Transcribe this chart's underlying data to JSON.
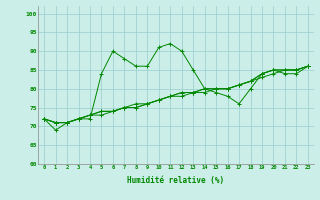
{
  "xlabel": "Humidité relative (%)",
  "background_color": "#cceee8",
  "grid_color": "#99cccc",
  "line_color": "#008800",
  "x_values": [
    0,
    1,
    2,
    3,
    4,
    5,
    6,
    7,
    8,
    9,
    10,
    11,
    12,
    13,
    14,
    15,
    16,
    17,
    18,
    19,
    20,
    21,
    22,
    23
  ],
  "y_main": [
    72,
    69,
    71,
    72,
    72,
    84,
    90,
    88,
    86,
    86,
    91,
    92,
    90,
    85,
    80,
    79,
    78,
    76,
    80,
    84,
    85,
    84,
    84,
    86
  ],
  "y_line2": [
    72,
    71,
    71,
    72,
    73,
    73,
    74,
    75,
    75,
    76,
    77,
    78,
    79,
    79,
    80,
    80,
    80,
    81,
    82,
    84,
    85,
    85,
    85,
    86
  ],
  "y_line3": [
    72,
    71,
    71,
    72,
    73,
    74,
    74,
    75,
    76,
    76,
    77,
    78,
    79,
    79,
    80,
    80,
    80,
    81,
    82,
    84,
    85,
    85,
    85,
    86
  ],
  "y_line4": [
    72,
    71,
    71,
    72,
    73,
    74,
    74,
    75,
    75,
    76,
    77,
    78,
    78,
    79,
    79,
    80,
    80,
    81,
    82,
    83,
    84,
    85,
    85,
    86
  ],
  "ylim": [
    60,
    102
  ],
  "yticks": [
    60,
    65,
    70,
    75,
    80,
    85,
    90,
    95,
    100
  ],
  "xlim": [
    -0.5,
    23.5
  ]
}
